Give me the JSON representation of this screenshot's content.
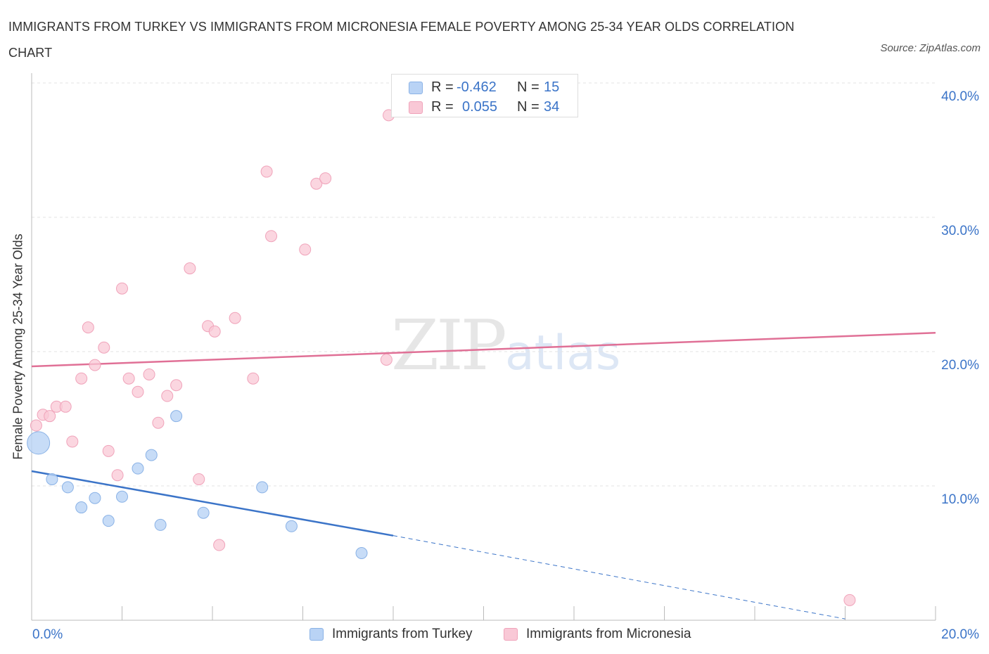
{
  "title": "IMMIGRANTS FROM TURKEY VS IMMIGRANTS FROM MICRONESIA FEMALE POVERTY AMONG 25-34 YEAR OLDS CORRELATION CHART",
  "source": "Source: ZipAtlas.com",
  "watermark": {
    "zip": "ZIP",
    "atlas": "atlas"
  },
  "legend_top": [
    {
      "r_label": "R =",
      "r_value": "-0.462",
      "n_label": "N =",
      "n_value": "15"
    },
    {
      "r_label": "R =",
      "r_value": "0.055",
      "n_label": "N =",
      "n_value": "34"
    }
  ],
  "legend_bottom": [
    "Immigrants from Turkey",
    "Immigrants from Micronesia"
  ],
  "colors": {
    "turkey_fill": "#b9d3f5",
    "turkey_stroke": "#8ab2e6",
    "turkey_line": "#3b74c8",
    "micronesia_fill": "#f9c8d6",
    "micronesia_stroke": "#f0a3ba",
    "micronesia_line": "#e07096",
    "grid": "#e3e3e3",
    "axis_label": "#3b74c8"
  },
  "chart_data": {
    "type": "scatter",
    "title": "IMMIGRANTS FROM TURKEY VS IMMIGRANTS FROM MICRONESIA FEMALE POVERTY AMONG 25-34 YEAR OLDS CORRELATION CHART",
    "xlabel": "",
    "ylabel": "Female Poverty Among 25-34 Year Olds",
    "xlim": [
      0,
      20
    ],
    "ylim": [
      0,
      40
    ],
    "x_tick_labels": [
      {
        "value": 0,
        "label": "0.0%"
      },
      {
        "value": 20,
        "label": "20.0%"
      }
    ],
    "y_tick_labels": [
      {
        "value": 10,
        "label": "10.0%"
      },
      {
        "value": 20,
        "label": "20.0%"
      },
      {
        "value": 30,
        "label": "30.0%"
      },
      {
        "value": 40,
        "label": "40.0%"
      }
    ],
    "series": [
      {
        "name": "Immigrants from Turkey",
        "r": -0.462,
        "n": 15,
        "points": [
          {
            "x": 0.15,
            "y": 13.2,
            "large": true
          },
          {
            "x": 0.45,
            "y": 10.5
          },
          {
            "x": 0.8,
            "y": 9.9
          },
          {
            "x": 1.1,
            "y": 8.4
          },
          {
            "x": 1.4,
            "y": 9.1
          },
          {
            "x": 1.7,
            "y": 7.4
          },
          {
            "x": 2.0,
            "y": 9.2
          },
          {
            "x": 2.35,
            "y": 11.3
          },
          {
            "x": 2.65,
            "y": 12.3
          },
          {
            "x": 2.85,
            "y": 7.1
          },
          {
            "x": 3.2,
            "y": 15.2
          },
          {
            "x": 3.8,
            "y": 8.0
          },
          {
            "x": 5.1,
            "y": 9.9
          },
          {
            "x": 5.75,
            "y": 7.0
          },
          {
            "x": 7.3,
            "y": 5.0
          }
        ],
        "trend": {
          "x0": 0,
          "y0": 11.1,
          "x1": 8.0,
          "y1": 6.3,
          "dash_to_x": 18.0,
          "dash_to_y": 0.1
        }
      },
      {
        "name": "Immigrants from Micronesia",
        "r": 0.055,
        "n": 34,
        "points": [
          {
            "x": 0.1,
            "y": 14.5
          },
          {
            "x": 0.25,
            "y": 15.3
          },
          {
            "x": 0.4,
            "y": 15.2
          },
          {
            "x": 0.55,
            "y": 15.9
          },
          {
            "x": 0.75,
            "y": 15.9
          },
          {
            "x": 0.9,
            "y": 13.3
          },
          {
            "x": 1.1,
            "y": 18.0
          },
          {
            "x": 1.25,
            "y": 21.8
          },
          {
            "x": 1.4,
            "y": 19.0
          },
          {
            "x": 1.6,
            "y": 20.3
          },
          {
            "x": 1.7,
            "y": 12.6
          },
          {
            "x": 1.9,
            "y": 10.8
          },
          {
            "x": 2.0,
            "y": 24.7
          },
          {
            "x": 2.15,
            "y": 18.0
          },
          {
            "x": 2.35,
            "y": 17.0
          },
          {
            "x": 2.6,
            "y": 18.3
          },
          {
            "x": 2.8,
            "y": 14.7
          },
          {
            "x": 3.0,
            "y": 16.7
          },
          {
            "x": 3.2,
            "y": 17.5
          },
          {
            "x": 3.5,
            "y": 26.2
          },
          {
            "x": 3.9,
            "y": 21.9
          },
          {
            "x": 4.05,
            "y": 21.5
          },
          {
            "x": 3.7,
            "y": 10.5
          },
          {
            "x": 4.15,
            "y": 5.6
          },
          {
            "x": 4.5,
            "y": 22.5
          },
          {
            "x": 4.9,
            "y": 18.0
          },
          {
            "x": 5.2,
            "y": 33.4
          },
          {
            "x": 5.3,
            "y": 28.6
          },
          {
            "x": 6.05,
            "y": 27.6
          },
          {
            "x": 6.3,
            "y": 32.5
          },
          {
            "x": 6.5,
            "y": 32.9
          },
          {
            "x": 7.85,
            "y": 19.4
          },
          {
            "x": 7.9,
            "y": 37.6
          },
          {
            "x": 18.1,
            "y": 1.5
          }
        ],
        "trend": {
          "x0": 0,
          "y0": 18.9,
          "x1": 20.0,
          "y1": 21.4
        }
      }
    ]
  }
}
